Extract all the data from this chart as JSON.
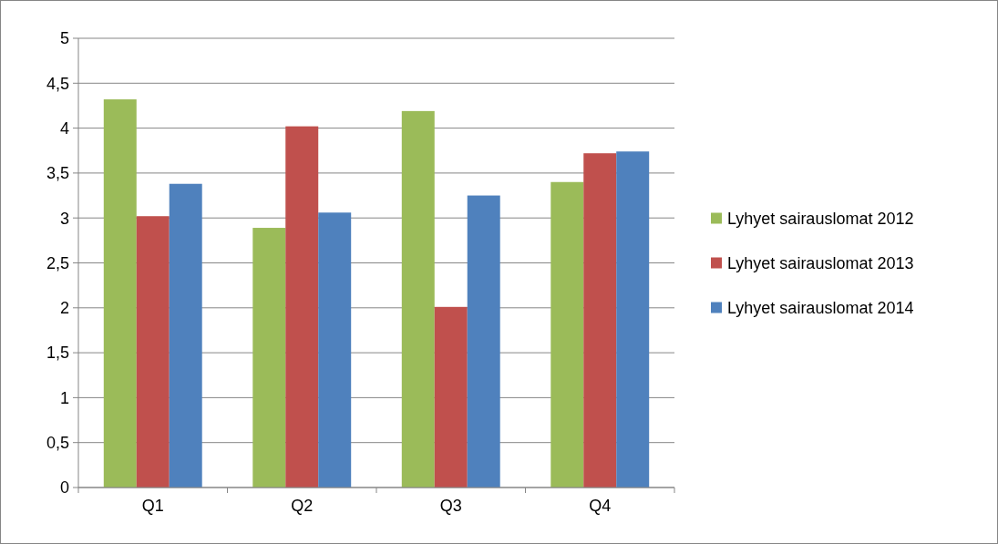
{
  "chart_data": {
    "type": "bar",
    "categories": [
      "Q1",
      "Q2",
      "Q3",
      "Q4"
    ],
    "series": [
      {
        "name": "Lyhyet sairauslomat 2012",
        "color": "#9bbb59",
        "values": [
          4.32,
          2.89,
          4.19,
          3.4
        ]
      },
      {
        "name": "Lyhyet sairauslomat 2013",
        "color": "#c0504d",
        "values": [
          3.02,
          4.02,
          2.01,
          3.72
        ]
      },
      {
        "name": "Lyhyet sairauslomat 2014",
        "color": "#4f81bd",
        "values": [
          3.38,
          3.06,
          3.25,
          3.74
        ]
      }
    ],
    "ylim": [
      0,
      5
    ],
    "yticks": [
      0,
      {
        "value": 0.5,
        "label": "0,5"
      },
      1,
      {
        "value": 1.5,
        "label": "1,5"
      },
      2,
      {
        "value": 2.5,
        "label": "2,5"
      },
      3,
      {
        "value": 3.5,
        "label": "3,5"
      },
      4,
      {
        "value": 4.5,
        "label": "4,5"
      },
      5
    ],
    "grid": "y",
    "legend": "right"
  }
}
